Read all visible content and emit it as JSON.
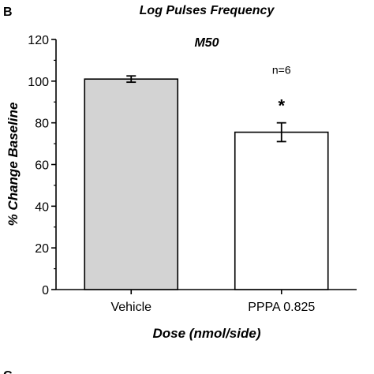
{
  "panel_letter": "B",
  "panel_letter_next": "C",
  "chart_data": {
    "type": "bar",
    "title": "Log Pulses Frequency",
    "subtitle": "M50",
    "xlabel": "Dose (nmol/side)",
    "ylabel": "% Change Baseline",
    "categories": [
      "Vehicle",
      "PPPA 0.825"
    ],
    "values": [
      101,
      75.5
    ],
    "errors": [
      1.5,
      4.5
    ],
    "bar_colors": [
      "#d3d3d3",
      "#ffffff"
    ],
    "ylim": [
      0,
      120
    ],
    "yticks": [
      0,
      20,
      40,
      60,
      80,
      100,
      120
    ],
    "grid": false,
    "annotations": [
      {
        "category": "PPPA 0.825",
        "lines": [
          "n=6",
          "*"
        ]
      }
    ]
  }
}
